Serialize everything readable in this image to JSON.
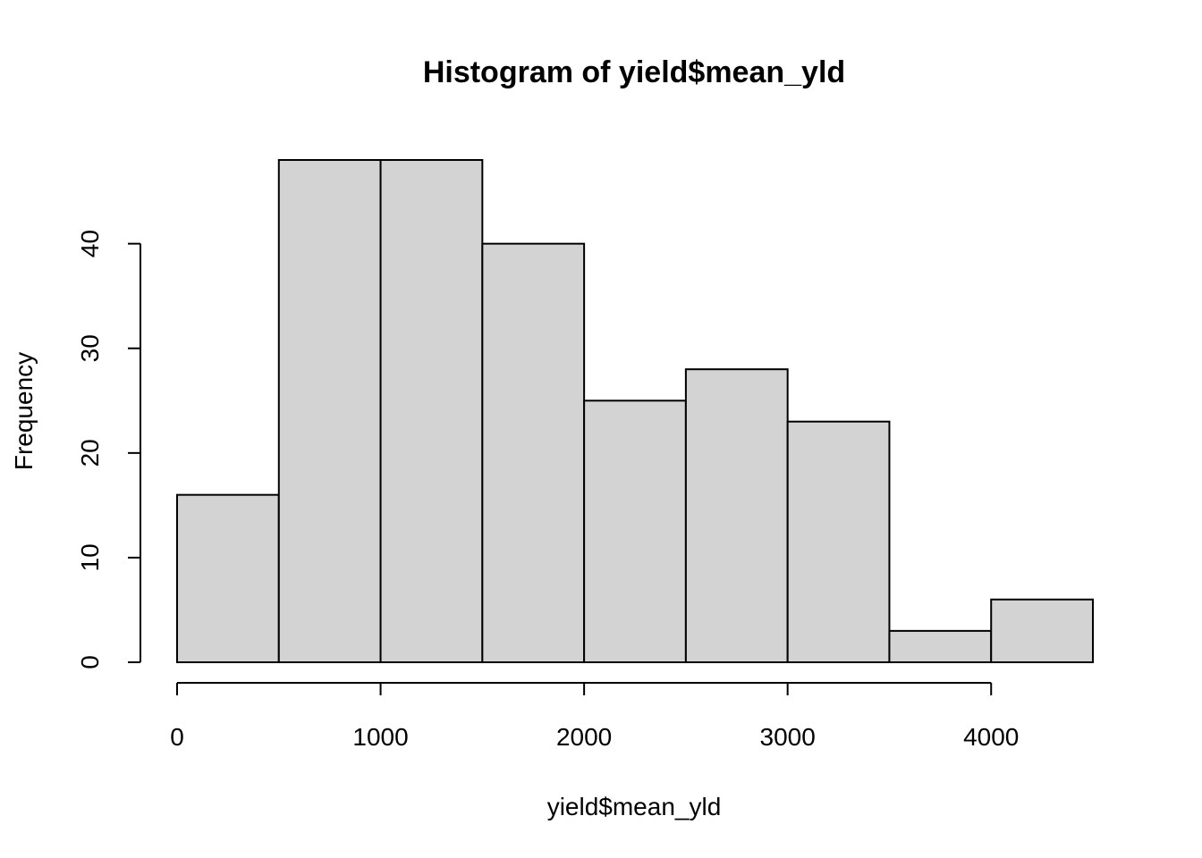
{
  "chart_data": {
    "type": "bar",
    "title": "Histogram of yield$mean_yld",
    "xlabel": "yield$mean_yld",
    "ylabel": "Frequency",
    "bins": [
      {
        "start": 0,
        "end": 500,
        "count": 16
      },
      {
        "start": 500,
        "end": 1000,
        "count": 48
      },
      {
        "start": 1000,
        "end": 1500,
        "count": 48
      },
      {
        "start": 1500,
        "end": 2000,
        "count": 40
      },
      {
        "start": 2000,
        "end": 2500,
        "count": 25
      },
      {
        "start": 2500,
        "end": 3000,
        "count": 28
      },
      {
        "start": 3000,
        "end": 3500,
        "count": 23
      },
      {
        "start": 3500,
        "end": 4000,
        "count": 3
      },
      {
        "start": 4000,
        "end": 4500,
        "count": 6
      }
    ],
    "x_ticks": [
      0,
      1000,
      2000,
      3000,
      4000
    ],
    "x_tick_labels": [
      "0",
      "1000",
      "2000",
      "3000",
      "4000"
    ],
    "y_ticks": [
      0,
      10,
      20,
      30,
      40
    ],
    "y_tick_labels": [
      "0",
      "10",
      "20",
      "30",
      "40"
    ],
    "xlim": [
      0,
      4500
    ],
    "ylim": [
      0,
      48
    ],
    "grid": false,
    "colors": {
      "bar_fill": "#d3d3d3",
      "bar_stroke": "#000000"
    }
  }
}
